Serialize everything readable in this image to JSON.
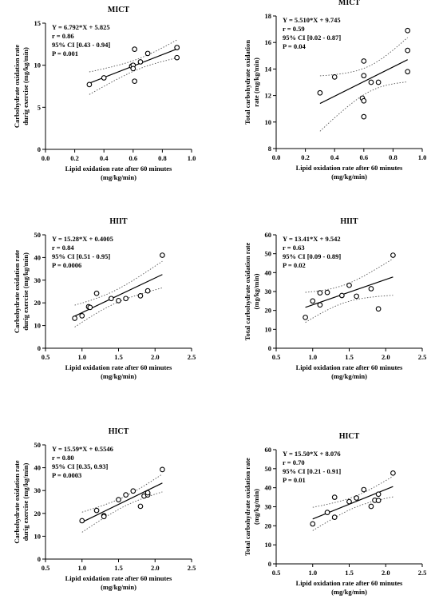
{
  "chart_data": [
    {
      "type": "scatter",
      "title": "MICT",
      "xlabel": [
        "Lipid oxidation rate after 60 minutes",
        "(mg/kg/min)"
      ],
      "ylabel": [
        "Carbohydrate oxidation rate",
        "durig exercise (mg/kg/min)"
      ],
      "xlim": [
        0,
        1.0
      ],
      "ylim": [
        0,
        15
      ],
      "xticks": [
        "0.0",
        "0.2",
        "0.4",
        "0.6",
        "0.8",
        "1.0"
      ],
      "yticks": [
        "0",
        "5",
        "10",
        "15"
      ],
      "annotations": [
        "Y = 6.792*X + 5.825",
        "r = 0.86",
        "95% CI [0.43 - 0.94]",
        "P = 0.001"
      ],
      "fit": {
        "slope": 6.792,
        "intercept": 5.825
      },
      "points": [
        {
          "x": 0.3,
          "y": 7.7
        },
        {
          "x": 0.4,
          "y": 8.5
        },
        {
          "x": 0.59,
          "y": 9.9
        },
        {
          "x": 0.6,
          "y": 10.0
        },
        {
          "x": 0.6,
          "y": 9.6
        },
        {
          "x": 0.61,
          "y": 8.1
        },
        {
          "x": 0.61,
          "y": 11.9
        },
        {
          "x": 0.65,
          "y": 10.4
        },
        {
          "x": 0.7,
          "y": 11.4
        },
        {
          "x": 0.9,
          "y": 12.1
        },
        {
          "x": 0.9,
          "y": 12.1
        },
        {
          "x": 0.9,
          "y": 10.9
        }
      ]
    },
    {
      "type": "scatter",
      "title": "MICT",
      "xlabel": [
        "Lipid oxidation rate after 60 minutes",
        "(mg/kg/min)"
      ],
      "ylabel": [
        "Total carbohydrate oxidation",
        "rate (mg/kg/min)"
      ],
      "xlim": [
        0,
        1.0
      ],
      "ylim": [
        8,
        18
      ],
      "xticks": [
        "0.0",
        "0.2",
        "0.4",
        "0.6",
        "0.8",
        "1.0"
      ],
      "yticks": [
        "8",
        "10",
        "12",
        "14",
        "16",
        "18"
      ],
      "annotations": [
        "Y = 5.510*X + 9.745",
        "r = 0.59",
        "95% CI [0.02 - 0.87]",
        "P = 0.04"
      ],
      "fit": {
        "slope": 5.51,
        "intercept": 9.745
      },
      "points": [
        {
          "x": 0.3,
          "y": 12.2
        },
        {
          "x": 0.4,
          "y": 13.4
        },
        {
          "x": 0.59,
          "y": 11.8
        },
        {
          "x": 0.6,
          "y": 14.6
        },
        {
          "x": 0.6,
          "y": 13.5
        },
        {
          "x": 0.6,
          "y": 11.6
        },
        {
          "x": 0.6,
          "y": 10.4
        },
        {
          "x": 0.65,
          "y": 13.0
        },
        {
          "x": 0.7,
          "y": 13.0
        },
        {
          "x": 0.9,
          "y": 16.9
        },
        {
          "x": 0.9,
          "y": 15.4
        },
        {
          "x": 0.9,
          "y": 13.8
        }
      ]
    },
    {
      "type": "scatter",
      "title": "HIIT",
      "xlabel": [
        "Lipid oxidation rate after 60 minutes",
        "(mg/kg/min)"
      ],
      "ylabel": [
        "Carbohydrate oxidation rate",
        "durig exercise (mg/kg/min)"
      ],
      "xlim": [
        0.5,
        2.5
      ],
      "ylim": [
        0,
        50
      ],
      "xticks": [
        "0.5",
        "1.0",
        "1.5",
        "2.0",
        "2.5"
      ],
      "yticks": [
        "0",
        "10",
        "20",
        "30",
        "40",
        "50"
      ],
      "annotations": [
        "Y = 15.28*X + 0.4005",
        "r = 0.84",
        "95% CI [0.51 - 0.95]",
        "P = 0.0006"
      ],
      "fit": {
        "slope": 15.28,
        "intercept": 0.4005
      },
      "points": [
        {
          "x": 0.9,
          "y": 13.2
        },
        {
          "x": 1.0,
          "y": 14.3
        },
        {
          "x": 1.09,
          "y": 18.3
        },
        {
          "x": 1.11,
          "y": 18.0
        },
        {
          "x": 1.2,
          "y": 24.2
        },
        {
          "x": 1.4,
          "y": 21.9
        },
        {
          "x": 1.5,
          "y": 21.0
        },
        {
          "x": 1.6,
          "y": 21.9
        },
        {
          "x": 1.8,
          "y": 23.1
        },
        {
          "x": 1.9,
          "y": 25.3
        },
        {
          "x": 2.1,
          "y": 41.0
        }
      ]
    },
    {
      "type": "scatter",
      "title": "HIIT",
      "xlabel": [
        "Lipid oxidation rate after 60 minutes",
        "(mg/kg/min)"
      ],
      "ylabel": [
        "Total carbohydrate oxidation rate",
        "(mg/kg/min)"
      ],
      "xlim": [
        0.5,
        2.5
      ],
      "ylim": [
        0,
        60
      ],
      "xticks": [
        "0.5",
        "1.0",
        "1.5",
        "2.0",
        "2.5"
      ],
      "yticks": [
        "0",
        "10",
        "20",
        "30",
        "40",
        "50",
        "60"
      ],
      "annotations": [
        "Y = 13.41*X + 9.542",
        "r = 0.63",
        "95% CI [0.09 - 0.89]",
        "P = 0.02"
      ],
      "fit": {
        "slope": 13.41,
        "intercept": 9.542
      },
      "points": [
        {
          "x": 0.9,
          "y": 16.3
        },
        {
          "x": 1.0,
          "y": 25.0
        },
        {
          "x": 1.1,
          "y": 22.9
        },
        {
          "x": 1.1,
          "y": 29.3
        },
        {
          "x": 1.2,
          "y": 29.5
        },
        {
          "x": 1.4,
          "y": 27.9
        },
        {
          "x": 1.5,
          "y": 33.3
        },
        {
          "x": 1.6,
          "y": 27.5
        },
        {
          "x": 1.8,
          "y": 31.5
        },
        {
          "x": 1.9,
          "y": 20.8
        },
        {
          "x": 2.1,
          "y": 49.2
        }
      ]
    },
    {
      "type": "scatter",
      "title": "HICT",
      "xlabel": [
        "Lipid oxidation rate after 60 minutes",
        "(mg/kg/min)"
      ],
      "ylabel": [
        "Carbohydrate oxidation rate",
        "durig exercise (mg/kg/min)"
      ],
      "xlim": [
        0.5,
        2.5
      ],
      "ylim": [
        0,
        50
      ],
      "xticks": [
        "0.5",
        "1.0",
        "1.5",
        "2.0",
        "2.5"
      ],
      "yticks": [
        "0",
        "10",
        "20",
        "30",
        "40",
        "50"
      ],
      "annotations": [
        "Y = 15.59*X + 0.5546",
        "r = 0.80",
        "95% CI [0.35, 0.93]",
        "P = 0.0003"
      ],
      "fit": {
        "slope": 15.59,
        "intercept": 0.5546
      },
      "points": [
        {
          "x": 1.0,
          "y": 16.8
        },
        {
          "x": 1.2,
          "y": 21.3
        },
        {
          "x": 1.3,
          "y": 19.0
        },
        {
          "x": 1.3,
          "y": 18.6
        },
        {
          "x": 1.5,
          "y": 26.0
        },
        {
          "x": 1.6,
          "y": 28.1
        },
        {
          "x": 1.7,
          "y": 29.8
        },
        {
          "x": 1.8,
          "y": 23.1
        },
        {
          "x": 1.85,
          "y": 27.6
        },
        {
          "x": 1.9,
          "y": 28.1
        },
        {
          "x": 1.9,
          "y": 29.0
        },
        {
          "x": 2.1,
          "y": 39.2
        }
      ]
    },
    {
      "type": "scatter",
      "title": "HICT",
      "xlabel": [
        "Lipid oxidation rate after 60 minutes",
        "(mg/kg/min)"
      ],
      "ylabel": [
        "Total carbohydrate oxidation rate",
        "(mg/kg/min)"
      ],
      "xlim": [
        0.5,
        2.5
      ],
      "ylim": [
        0,
        60
      ],
      "xticks": [
        "0.5",
        "1.0",
        "1.5",
        "2.0",
        "2.5"
      ],
      "yticks": [
        "0",
        "10",
        "20",
        "30",
        "40",
        "50",
        "60"
      ],
      "annotations": [
        "Y = 15.50*X + 8.076",
        "r = 0.70",
        "95% CI [0.21 - 0.91]",
        "P = 0.01"
      ],
      "fit": {
        "slope": 15.5,
        "intercept": 8.076
      },
      "points": [
        {
          "x": 1.0,
          "y": 21.0
        },
        {
          "x": 1.2,
          "y": 27.0
        },
        {
          "x": 1.3,
          "y": 24.5
        },
        {
          "x": 1.3,
          "y": 35.0
        },
        {
          "x": 1.5,
          "y": 32.7
        },
        {
          "x": 1.6,
          "y": 34.6
        },
        {
          "x": 1.7,
          "y": 39.0
        },
        {
          "x": 1.8,
          "y": 30.2
        },
        {
          "x": 1.85,
          "y": 33.4
        },
        {
          "x": 1.9,
          "y": 36.6
        },
        {
          "x": 1.9,
          "y": 33.3
        },
        {
          "x": 2.1,
          "y": 47.7
        }
      ]
    }
  ]
}
